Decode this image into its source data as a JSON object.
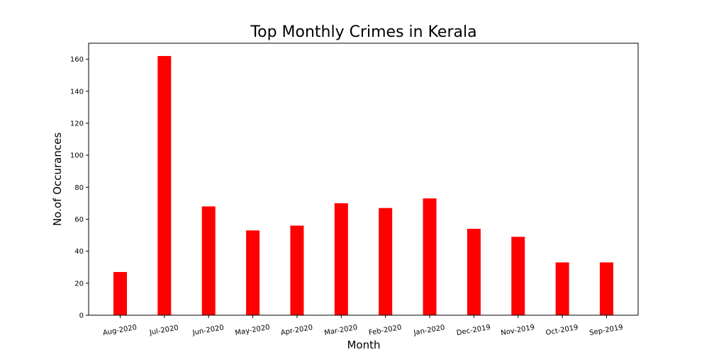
{
  "chart_data": {
    "type": "bar",
    "title": "Top Monthly Crimes in Kerala",
    "xlabel": "Month",
    "ylabel": "No.of Occurances",
    "categories": [
      "Aug-2020",
      "Jul-2020",
      "Jun-2020",
      "May-2020",
      "Apr-2020",
      "Mar-2020",
      "Feb-2020",
      "Jan-2020",
      "Dec-2019",
      "Nov-2019",
      "Oct-2019",
      "Sep-2019"
    ],
    "values": [
      27,
      162,
      68,
      53,
      56,
      70,
      67,
      73,
      54,
      49,
      33,
      33
    ],
    "ylim": [
      0,
      170
    ],
    "yticks": [
      0,
      20,
      40,
      60,
      80,
      100,
      120,
      140,
      160
    ],
    "bar_color": "#ff0000",
    "grid": false,
    "legend": "none"
  }
}
